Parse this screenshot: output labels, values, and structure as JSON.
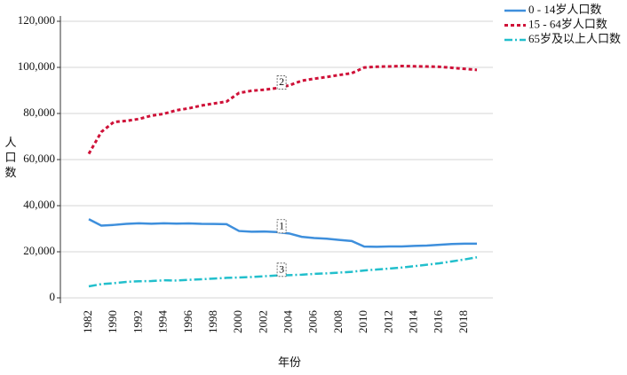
{
  "chart_data": {
    "type": "line",
    "x_label": "年份",
    "y_label": "人口数",
    "categories": [
      "1982",
      null,
      "1990",
      null,
      "1992",
      null,
      "1994",
      null,
      "1996",
      null,
      "1998",
      null,
      "2000",
      null,
      "2002",
      null,
      "2004",
      null,
      "2006",
      null,
      "2008",
      null,
      "2010",
      null,
      "2012",
      null,
      "2014",
      null,
      "2016",
      null,
      "2018",
      null
    ],
    "series": [
      {
        "name": "0 - 14岁人口数",
        "color": "#3e8fdc",
        "dash": "solid",
        "label": "1",
        "values": [
          34146,
          31347,
          31659,
          32095,
          32339,
          32177,
          32360,
          32218,
          32311,
          32093,
          32064,
          31950,
          29012,
          28716,
          28774,
          28559,
          27947,
          26504,
          25961,
          25660,
          25166,
          24659,
          22259,
          22164,
          22287,
          22329,
          22558,
          22715,
          23008,
          23348,
          23523,
          23492
        ]
      },
      {
        "name": "15 - 64岁人口数",
        "color": "#cf1138",
        "dash": "dotted",
        "label": "2",
        "values": [
          62517,
          71985,
          76306,
          76791,
          77614,
          79051,
          79868,
          81393,
          82245,
          83448,
          84338,
          85157,
          88910,
          89849,
          90302,
          90976,
          92184,
          94197,
          95068,
          95833,
          96680,
          97484,
          99938,
          100283,
          100403,
          100582,
          100469,
          100361,
          100260,
          99829,
          99357,
          98910
        ]
      },
      {
        "name": "65岁及以上人口数",
        "color": "#22bfcc",
        "dash": "dashdot",
        "label": "3",
        "values": [
          4991,
          5968,
          6368,
          6938,
          7218,
          7289,
          7622,
          7510,
          7833,
          8085,
          8359,
          8679,
          8821,
          9062,
          9377,
          9692,
          9857,
          10055,
          10419,
          10636,
          10956,
          11307,
          11894,
          12288,
          12714,
          13161,
          13755,
          14386,
          15003,
          15831,
          16658,
          17603
        ]
      }
    ],
    "ylim": [
      0,
      120000
    ],
    "yticks": [
      0,
      {
        "value": 20000,
        "label": "20,000"
      },
      {
        "value": 40000,
        "label": "40,000"
      },
      {
        "value": 60000,
        "label": "60,000"
      },
      {
        "value": 80000,
        "label": "80,000"
      },
      {
        "value": 100000,
        "label": "100,000"
      },
      {
        "value": 120000,
        "label": "120,000"
      }
    ],
    "grid": true,
    "legend": "top-right"
  }
}
